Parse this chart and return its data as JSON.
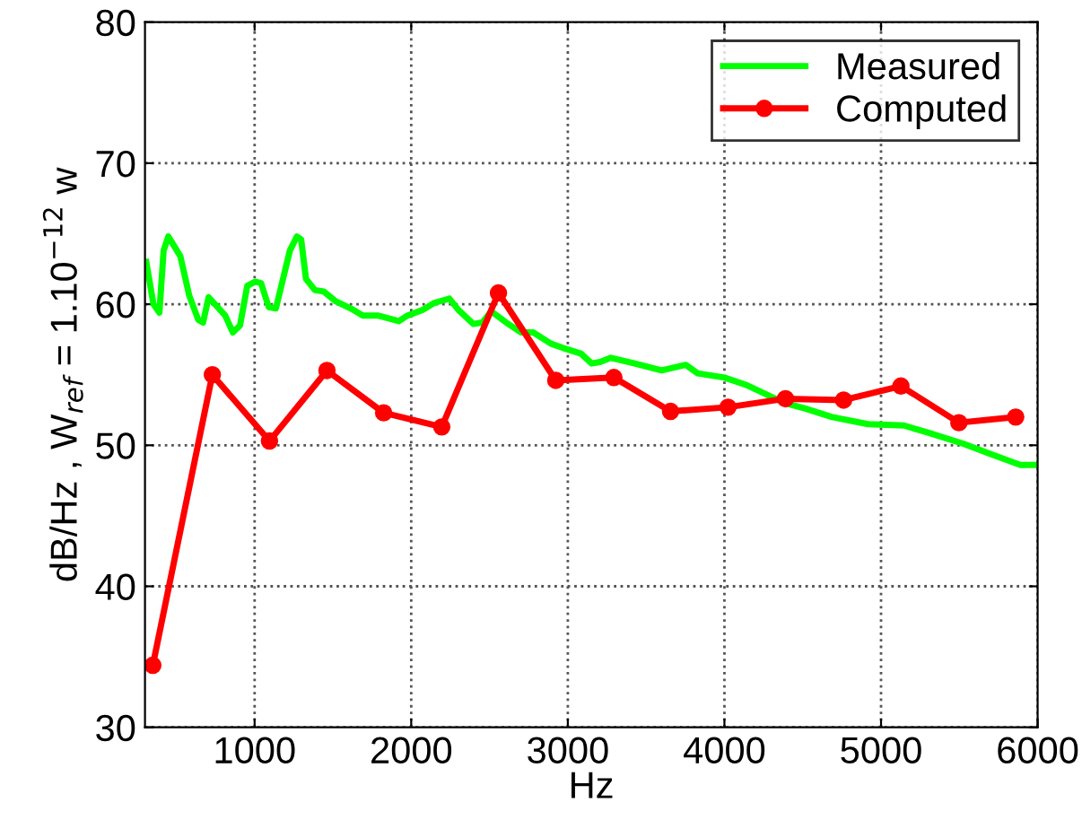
{
  "chart_data": {
    "type": "line",
    "xlabel": "Hz",
    "ylabel": "dB/Hz , W$_{ref}$ = 1.10$^{−12}$ w",
    "xlim": [
      300,
      6000
    ],
    "xticks": [
      1000,
      2000,
      3000,
      4000,
      5000,
      6000
    ],
    "ylim": [
      30,
      80
    ],
    "yticks": [
      30,
      40,
      50,
      60,
      70,
      80
    ],
    "grid": true,
    "legend": "top right",
    "series": [
      {
        "name": "Measured",
        "color": "#00ff00",
        "marker": "none",
        "line_style": "solid",
        "x": [
          308,
          354,
          392,
          419,
          449,
          526,
          583,
          640,
          671,
          706,
          755,
          812,
          861,
          907,
          953,
          1003,
          1041,
          1090,
          1136,
          1225,
          1270,
          1297,
          1328,
          1385,
          1442,
          1519,
          1614,
          1691,
          1786,
          1920,
          1977,
          2072,
          2149,
          2244,
          2301,
          2396,
          2454,
          2511,
          2607,
          2702,
          2779,
          2893,
          2969,
          3084,
          3152,
          3206,
          3275,
          3427,
          3599,
          3753,
          3829,
          4000,
          4134,
          4268,
          4383,
          4516,
          4688,
          4917,
          5146,
          5299,
          5528,
          5718,
          5890,
          6000
        ],
        "values": [
          63.0,
          60.0,
          59.4,
          63.8,
          64.8,
          63.4,
          60.6,
          58.9,
          58.7,
          60.5,
          59.9,
          59.2,
          58.0,
          58.5,
          61.3,
          61.6,
          61.5,
          59.8,
          59.7,
          63.8,
          64.8,
          64.6,
          61.8,
          61.0,
          60.9,
          60.2,
          59.7,
          59.2,
          59.2,
          58.8,
          59.2,
          59.6,
          60.1,
          60.4,
          59.6,
          58.6,
          58.7,
          59.5,
          58.7,
          58.0,
          58.0,
          57.2,
          56.9,
          56.5,
          55.8,
          55.9,
          56.2,
          55.8,
          55.3,
          55.7,
          55.1,
          54.8,
          54.3,
          53.6,
          53.0,
          52.6,
          52.0,
          51.5,
          51.4,
          50.9,
          50.1,
          49.3,
          48.6,
          48.6
        ]
      },
      {
        "name": "Computed",
        "color": "#ff0000",
        "marker": "circle",
        "line_style": "solid",
        "x": [
          350,
          730,
          1095,
          1462,
          1824,
          2195,
          2557,
          2923,
          3294,
          3656,
          4023,
          4390,
          4761,
          5127,
          5497,
          5860
        ],
        "values": [
          34.4,
          55.0,
          50.3,
          55.3,
          52.3,
          51.3,
          60.8,
          54.6,
          54.8,
          52.4,
          52.7,
          53.3,
          53.2,
          54.2,
          51.6,
          52.0
        ]
      }
    ]
  }
}
